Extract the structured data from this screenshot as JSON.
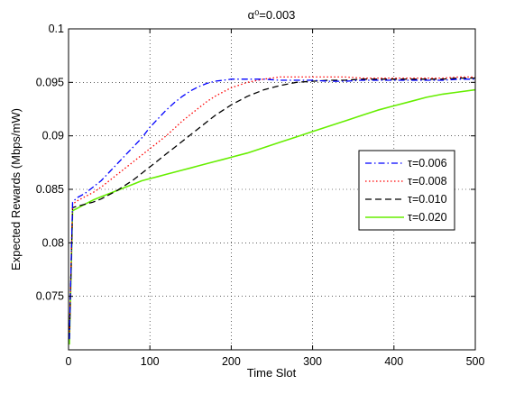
{
  "chart_data": {
    "type": "line",
    "title": "α⁰=0.003",
    "xlabel": "Time Slot",
    "ylabel": "Expected Rewards (Mbps/mW)",
    "xlim": [
      0,
      500
    ],
    "ylim": [
      0.07,
      0.1
    ],
    "xticks": [
      0,
      100,
      200,
      300,
      400,
      500
    ],
    "yticks": [
      0.075,
      0.08,
      0.085,
      0.09,
      0.095,
      0.1
    ],
    "xtick_labels": [
      "0",
      "100",
      "200",
      "300",
      "400",
      "500"
    ],
    "ytick_labels": [
      "0.075",
      "0.08",
      "0.085",
      "0.09",
      "0.095",
      "0.1"
    ],
    "grid": true,
    "legend_position": "right",
    "x": [
      1,
      5,
      10,
      20,
      30,
      40,
      50,
      60,
      70,
      80,
      90,
      100,
      110,
      120,
      130,
      140,
      150,
      160,
      170,
      180,
      190,
      200,
      220,
      240,
      260,
      280,
      300,
      320,
      340,
      360,
      380,
      400,
      420,
      440,
      460,
      480,
      500
    ],
    "series": [
      {
        "name": "τ=0.006",
        "color": "#0000ff",
        "dash": "dashdot",
        "values": [
          0.071,
          0.0838,
          0.0842,
          0.0846,
          0.0852,
          0.0858,
          0.0866,
          0.0874,
          0.0882,
          0.089,
          0.0898,
          0.0908,
          0.0916,
          0.0924,
          0.0931,
          0.0937,
          0.0942,
          0.0946,
          0.0949,
          0.0951,
          0.0952,
          0.0953,
          0.0953,
          0.0953,
          0.0952,
          0.0952,
          0.0952,
          0.0951,
          0.0951,
          0.0952,
          0.0952,
          0.0952,
          0.0952,
          0.0952,
          0.0952,
          0.0953,
          0.0953
        ]
      },
      {
        "name": "τ=0.008",
        "color": "#ff0000",
        "dash": "dotted",
        "values": [
          0.071,
          0.0836,
          0.0839,
          0.0843,
          0.0847,
          0.0852,
          0.0858,
          0.0864,
          0.087,
          0.0876,
          0.0882,
          0.0888,
          0.0894,
          0.09,
          0.0907,
          0.0914,
          0.092,
          0.0926,
          0.0932,
          0.0937,
          0.0941,
          0.0945,
          0.095,
          0.0953,
          0.0955,
          0.0955,
          0.0955,
          0.0955,
          0.0955,
          0.0954,
          0.0954,
          0.0954,
          0.0954,
          0.0954,
          0.0954,
          0.0955,
          0.0955
        ]
      },
      {
        "name": "τ=0.010",
        "color": "#000000",
        "dash": "dashed",
        "values": [
          0.071,
          0.0833,
          0.0834,
          0.0836,
          0.0838,
          0.0841,
          0.0845,
          0.0849,
          0.0854,
          0.0859,
          0.0865,
          0.0871,
          0.0877,
          0.0883,
          0.0889,
          0.0895,
          0.0901,
          0.0907,
          0.0913,
          0.0919,
          0.0924,
          0.0929,
          0.0937,
          0.0943,
          0.0947,
          0.095,
          0.0951,
          0.0952,
          0.0952,
          0.0953,
          0.0953,
          0.0953,
          0.0953,
          0.0953,
          0.0953,
          0.0954,
          0.0954
        ]
      },
      {
        "name": "τ=0.020",
        "color": "#66ee00",
        "dash": "solid",
        "values": [
          0.0705,
          0.083,
          0.0832,
          0.0836,
          0.084,
          0.0843,
          0.0846,
          0.0849,
          0.0852,
          0.0855,
          0.0858,
          0.086,
          0.0862,
          0.0864,
          0.0866,
          0.0868,
          0.087,
          0.0872,
          0.0874,
          0.0876,
          0.0878,
          0.088,
          0.0884,
          0.0889,
          0.0894,
          0.0899,
          0.0904,
          0.0909,
          0.0914,
          0.0919,
          0.0924,
          0.0928,
          0.0932,
          0.0936,
          0.0939,
          0.0941,
          0.0943
        ]
      }
    ]
  }
}
